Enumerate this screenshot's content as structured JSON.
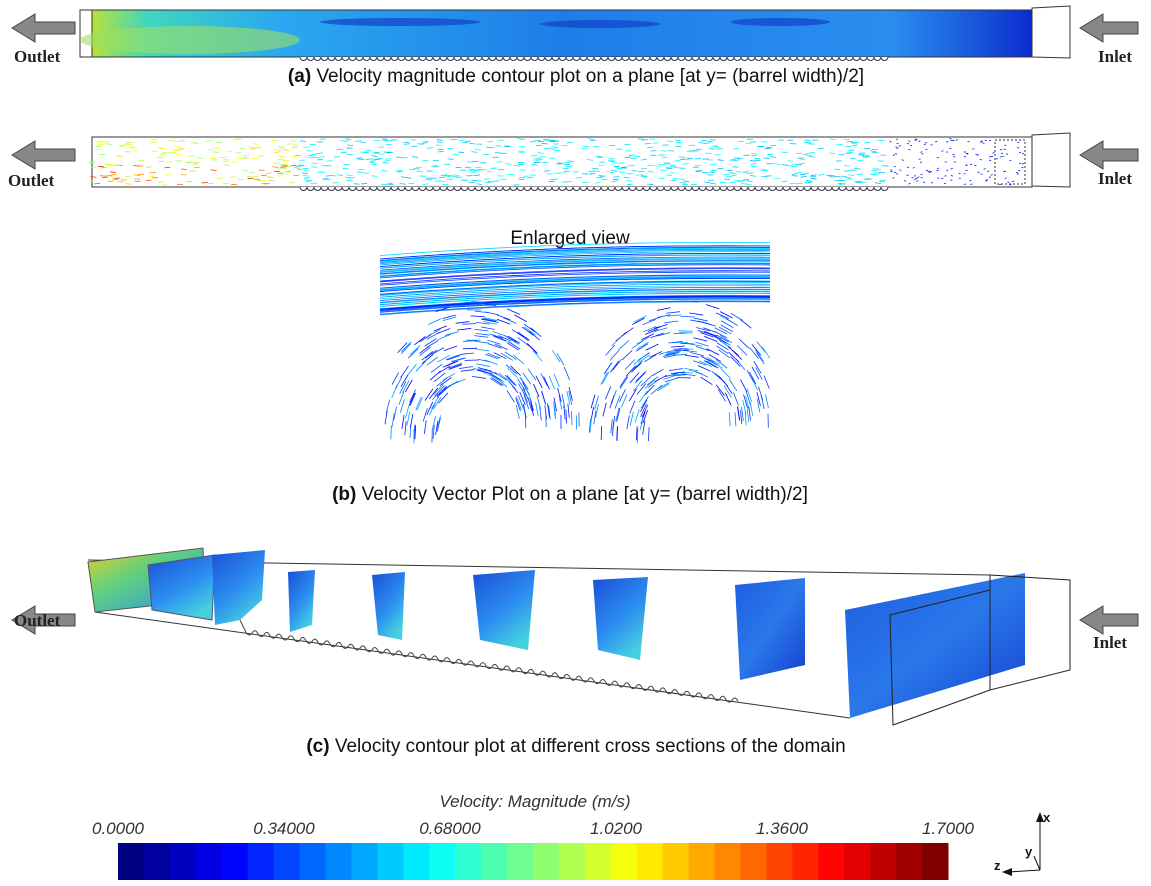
{
  "panels": [
    {
      "outlet": "Outlet",
      "inlet": "Inlet",
      "caption": {
        "label": "(a)",
        "text": "Velocity magnitude contour plot on a plane [at y= (barrel width)/2]"
      }
    },
    {
      "outlet": "Outlet",
      "inlet": "Inlet",
      "inset_label": "Enlarged view",
      "caption": {
        "label": "(b)",
        "text": "Velocity Vector Plot on a plane [at y= (barrel width)/2]"
      }
    },
    {
      "outlet": "Outlet",
      "inlet": "Inlet",
      "caption": {
        "label": "(c)",
        "text": "Velocity contour plot at different cross sections of the domain"
      }
    }
  ],
  "colorbar": {
    "title": "Velocity: Magnitude (m/s)",
    "ticks": [
      {
        "value": 0,
        "label": "0.0000"
      },
      {
        "value": 0.34,
        "label": "0.34000"
      },
      {
        "value": 0.68,
        "label": "0.68000"
      },
      {
        "value": 1.02,
        "label": "1.0200"
      },
      {
        "value": 1.36,
        "label": "1.3600"
      },
      {
        "value": 1.7,
        "label": "1.7000"
      }
    ]
  },
  "axes": {
    "x": "x",
    "y": "y",
    "z": "z"
  }
}
